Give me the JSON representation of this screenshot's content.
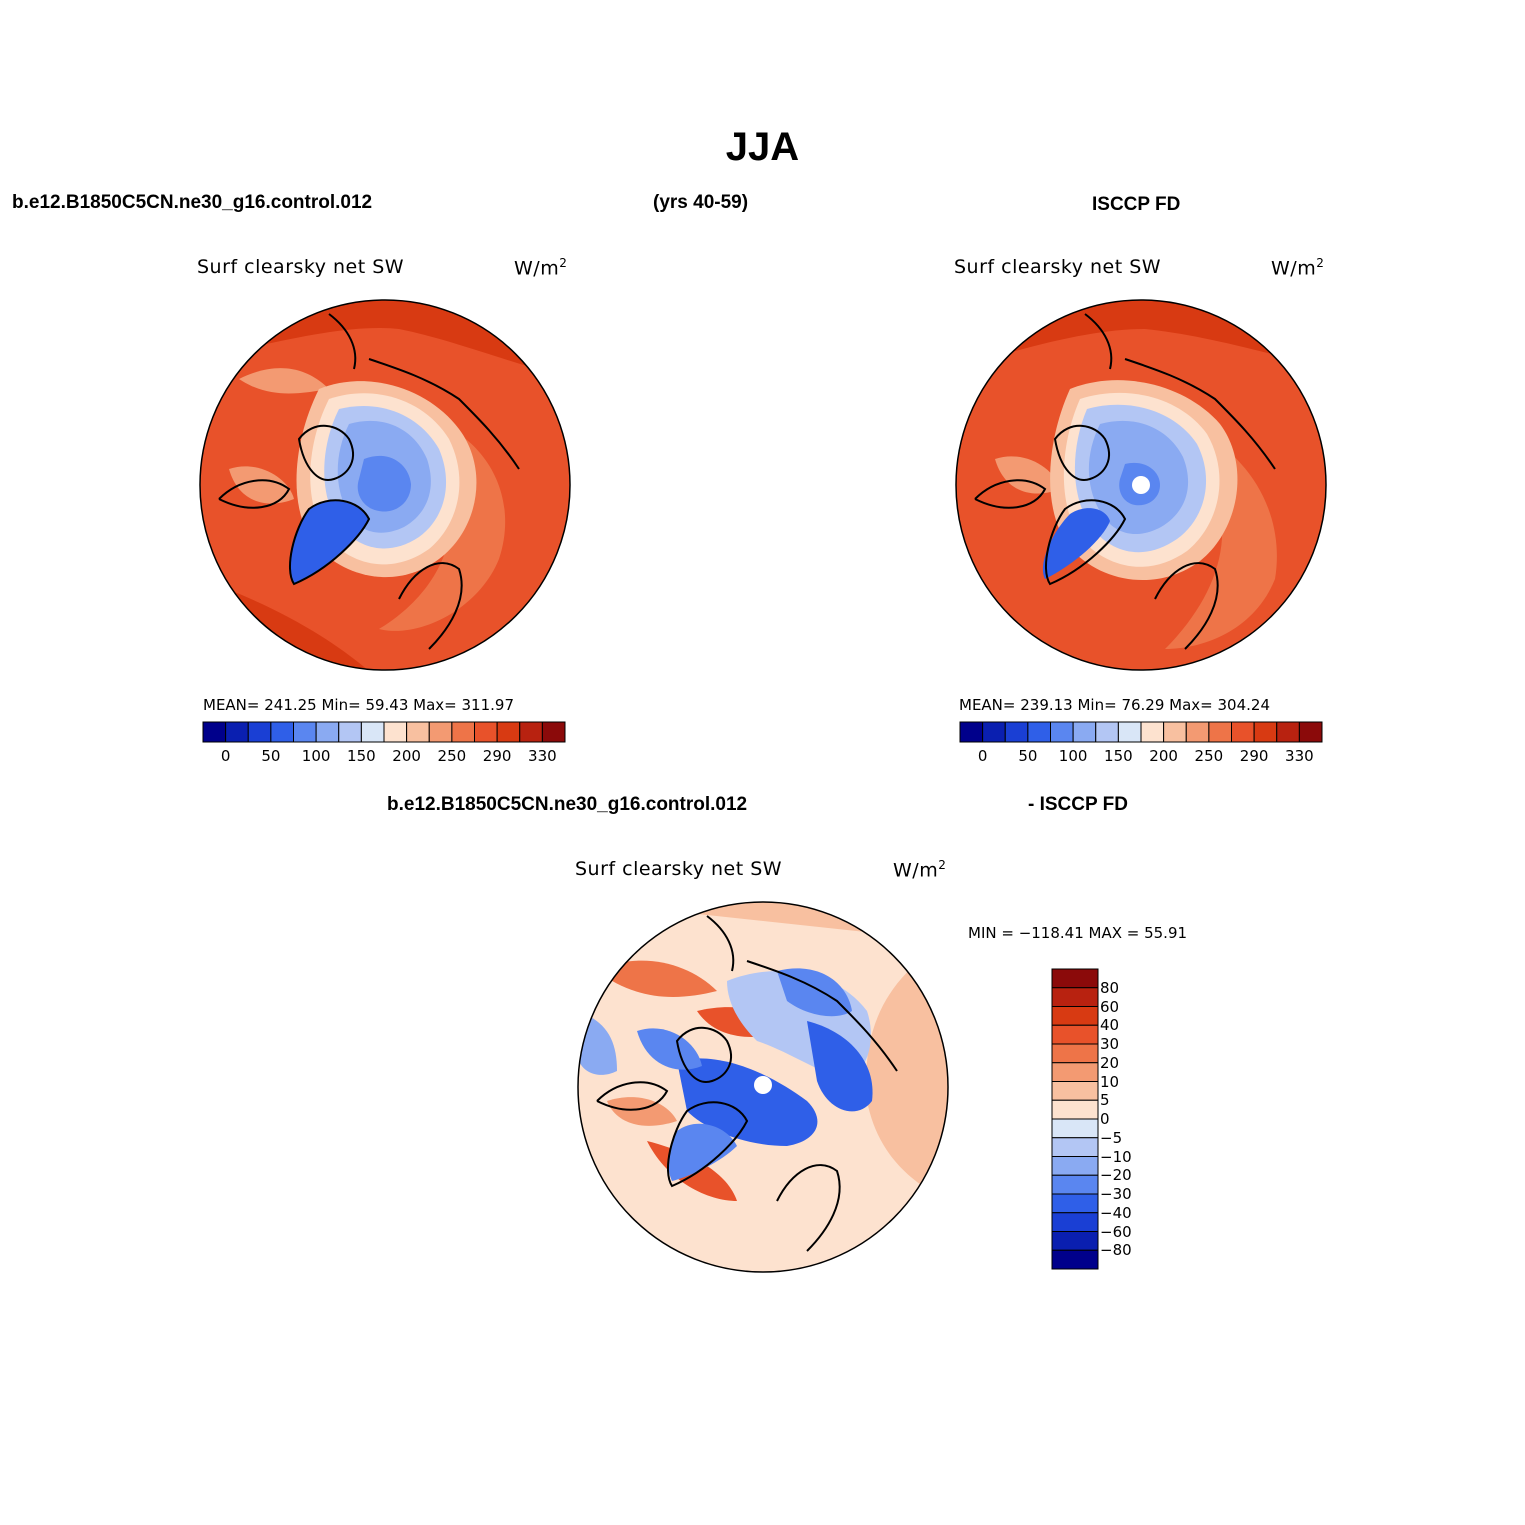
{
  "figure": {
    "season": "JJA",
    "case_name": "b.e12.B1850C5CN.ne30_g16.control.012",
    "years": "(yrs 40-59)",
    "obs_name": "ISCCP FD",
    "diff_case_name": "b.e12.B1850C5CN.ne30_g16.control.012",
    "diff_obs_name": "- ISCCP FD"
  },
  "panels": {
    "model": {
      "variable": "Surf clearsky net SW",
      "units_base": "W/m",
      "units_sup": "2",
      "stats": "MEAN= 241.25   Min=  59.43   Max= 311.97"
    },
    "obs": {
      "variable": "Surf clearsky net SW",
      "units_base": "W/m",
      "units_sup": "2",
      "stats": "MEAN= 239.13   Min=  76.29   Max= 304.24"
    },
    "diff": {
      "variable": "Surf clearsky net SW",
      "units_base": "W/m",
      "units_sup": "2",
      "stats": "MIN = −118.41  MAX =  55.91"
    }
  },
  "colorbars": {
    "abs": {
      "colors": [
        "#00008b",
        "#0a1fb0",
        "#1a3fd4",
        "#2f5fe8",
        "#5a86f0",
        "#8aaaf2",
        "#b3c6f4",
        "#d9e6f7",
        "#fde2cf",
        "#f8c0a0",
        "#f39a72",
        "#ee7448",
        "#e8522a",
        "#d83a12",
        "#b82210",
        "#8b0a0a"
      ],
      "labels": [
        "0",
        "50",
        "100",
        "150",
        "200",
        "250",
        "290",
        "330"
      ]
    },
    "diff": {
      "colors": [
        "#00008b",
        "#0a1fb0",
        "#1a3fd4",
        "#2f5fe8",
        "#5a86f0",
        "#8aaaf2",
        "#b3c6f4",
        "#d9e6f7",
        "#fde2cf",
        "#f8c0a0",
        "#f39a72",
        "#ee7448",
        "#e8522a",
        "#d83a12",
        "#b82210",
        "#8b0a0a"
      ],
      "labels": [
        "80",
        "60",
        "40",
        "30",
        "20",
        "10",
        "5",
        "0",
        "−5",
        "−10",
        "−20",
        "−30",
        "−40",
        "−60",
        "−80"
      ]
    }
  },
  "field_colors": {
    "ocean_warm": "#e8522a",
    "ocean_hot": "#d83a12",
    "land_warm": "#ee7448",
    "mid": "#f39a72",
    "light_warm": "#f8c0a0",
    "pale": "#fde2cf",
    "pale_blue": "#d9e6f7",
    "light_blue": "#b3c6f4",
    "blue": "#8aaaf2",
    "mid_blue": "#5a86f0",
    "deep_blue": "#2f5fe8",
    "pole_hole": "#ffffff"
  }
}
